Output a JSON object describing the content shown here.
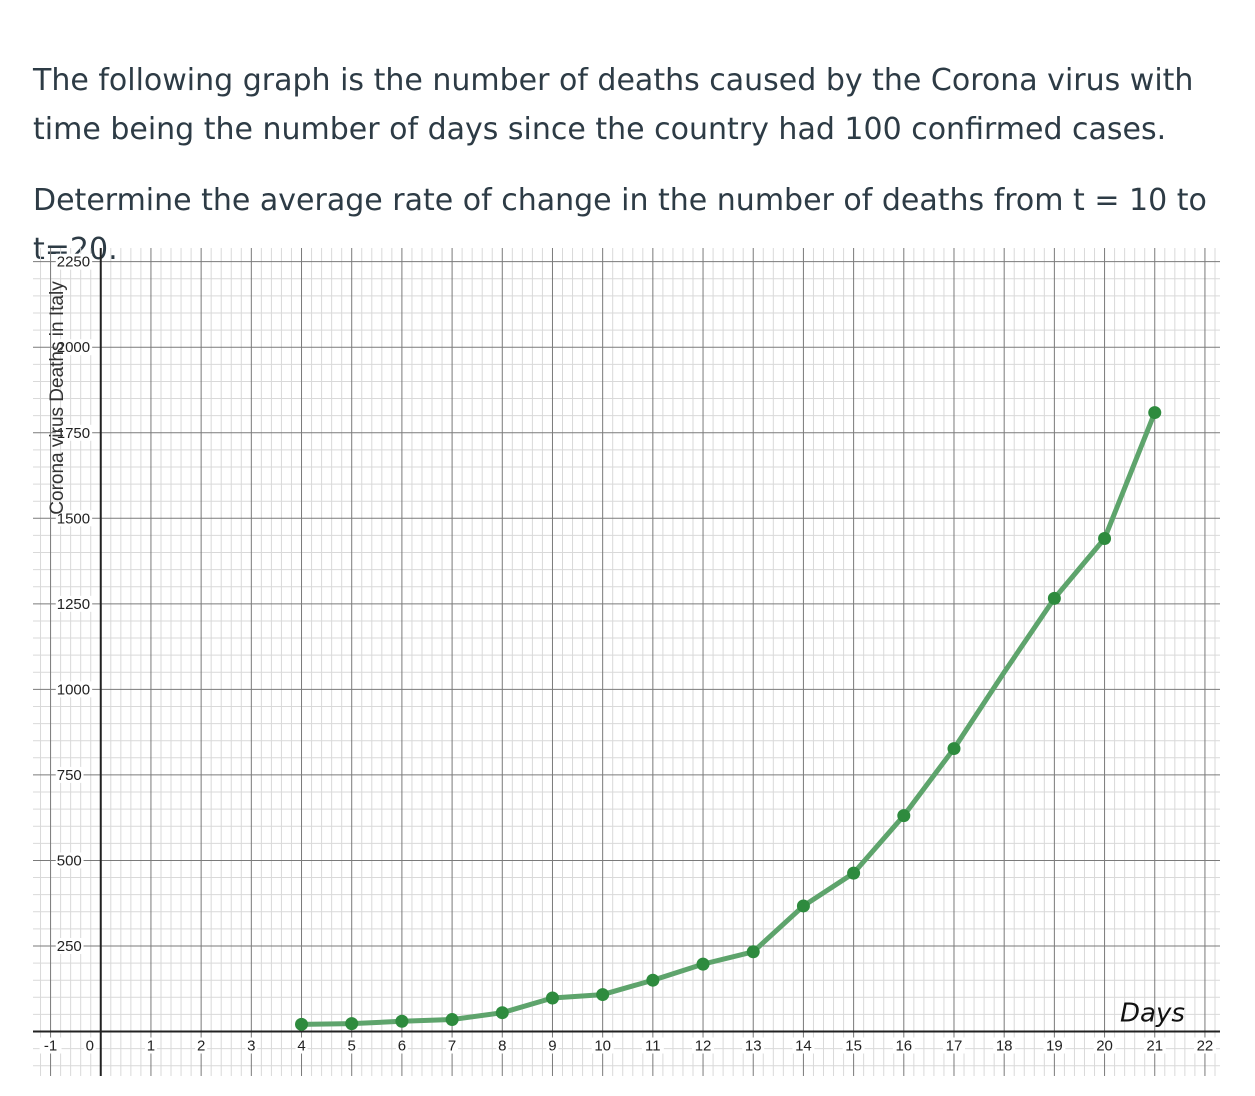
{
  "question": {
    "line1": "The following graph is the number of deaths caused by the Corona virus with time being the number of days since the country had 100 confirmed cases.",
    "line2": "Determine the average rate of change in the number of deaths from t = 10 to t=20."
  },
  "chart_data": {
    "type": "line",
    "ylabel": "Corona virus Deaths in Italy",
    "xlabel_handwritten": "Days",
    "x": [
      4,
      5,
      6,
      7,
      8,
      9,
      10,
      11,
      12,
      13,
      14,
      15,
      16,
      17,
      18,
      19,
      20,
      21
    ],
    "y": [
      21,
      23,
      30,
      35,
      55,
      98,
      108,
      150,
      197,
      233,
      367,
      463,
      631,
      827,
      1050,
      1266,
      1441,
      1809
    ],
    "markers_x": [
      4,
      5,
      6,
      7,
      8,
      9,
      10,
      11,
      12,
      13,
      14,
      15,
      16,
      17,
      19,
      20,
      21
    ],
    "xlim": [
      -1.35,
      22.3
    ],
    "ylim": [
      -130,
      2290
    ],
    "x_ticks": [
      -1,
      0,
      1,
      2,
      3,
      4,
      5,
      6,
      7,
      8,
      9,
      10,
      11,
      12,
      13,
      14,
      15,
      16,
      17,
      18,
      19,
      20,
      21,
      22
    ],
    "y_ticks": [
      250,
      500,
      750,
      1000,
      1250,
      1500,
      1750,
      2000,
      2250
    ],
    "grid": true,
    "line_color": "#5ea46c",
    "marker_color": "#2e8b3e"
  }
}
